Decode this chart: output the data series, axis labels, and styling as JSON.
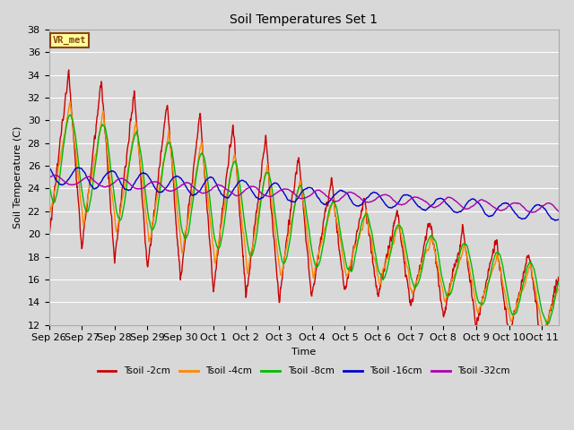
{
  "title": "Soil Temperatures Set 1",
  "xlabel": "Time",
  "ylabel": "Soil Temperature (C)",
  "ylim": [
    12,
    38
  ],
  "yticks": [
    12,
    14,
    16,
    18,
    20,
    22,
    24,
    26,
    28,
    30,
    32,
    34,
    36,
    38
  ],
  "background_color": "#d8d8d8",
  "plot_bg_color": "#d8d8d8",
  "annotation_text": "VR_met",
  "annotation_bg": "#ffff99",
  "annotation_border": "#8b4513",
  "series": [
    {
      "label": "Tsoil -2cm",
      "color": "#cc0000",
      "lw": 1.0
    },
    {
      "label": "Tsoil -4cm",
      "color": "#ff8800",
      "lw": 1.0
    },
    {
      "label": "Tsoil -8cm",
      "color": "#00bb00",
      "lw": 1.0
    },
    {
      "label": "Tsoil -16cm",
      "color": "#0000cc",
      "lw": 1.0
    },
    {
      "label": "Tsoil -32cm",
      "color": "#aa00aa",
      "lw": 1.0
    }
  ],
  "n_days": 15.5,
  "grid_color": "#ffffff",
  "tick_label_size": 8
}
